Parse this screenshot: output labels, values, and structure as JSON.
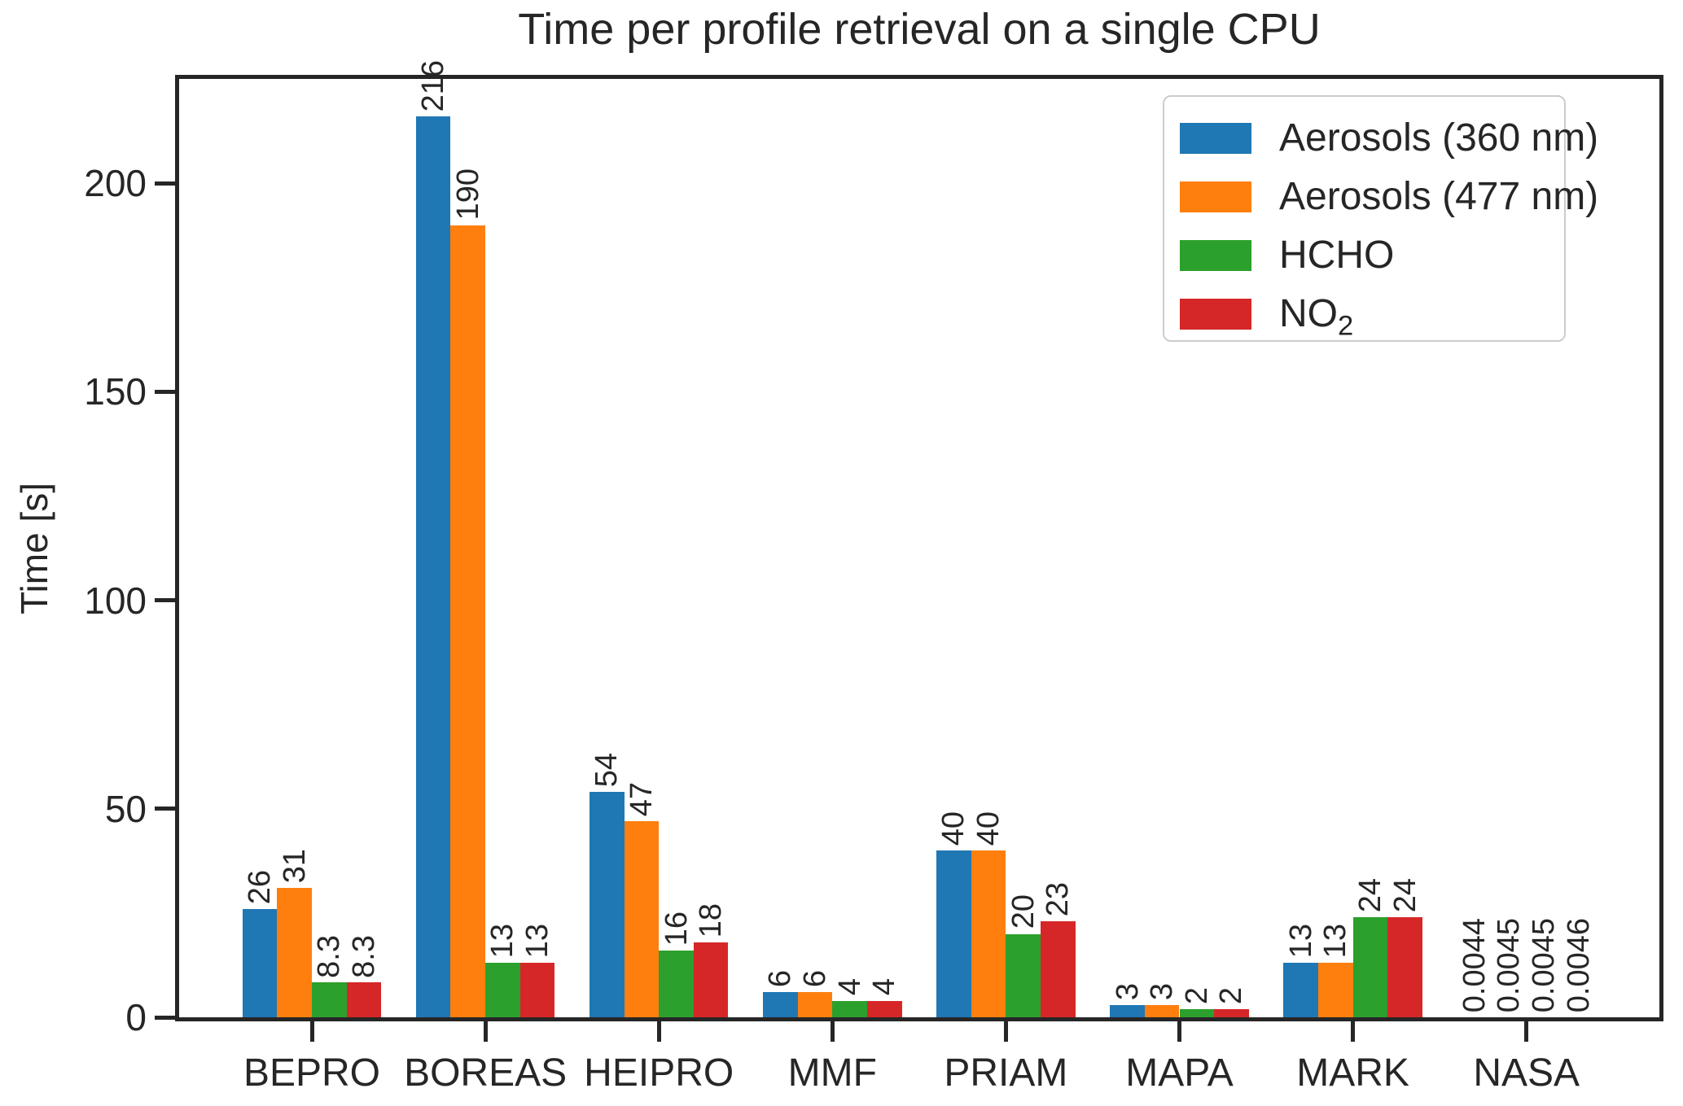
{
  "chart_data": {
    "type": "bar",
    "title": "Time per profile retrieval on a single CPU",
    "ylabel": "Time [s]",
    "xlabel": "",
    "categories": [
      "BEPRO",
      "BOREAS",
      "HEIPRO",
      "MMF",
      "PRIAM",
      "MAPA",
      "MARK",
      "NASA"
    ],
    "series": [
      {
        "name": "Aerosols (360 nm)",
        "color": "#1f77b4",
        "values": [
          26,
          216,
          54,
          6,
          40,
          3,
          13,
          0.0044
        ],
        "labels": [
          "26",
          "216",
          "54",
          "6",
          "40",
          "3",
          "13",
          "0.0044"
        ],
        "legend": {
          "text": "Aerosols (360 nm)",
          "sub": ""
        }
      },
      {
        "name": "Aerosols (477 nm)",
        "color": "#ff7f0e",
        "values": [
          31,
          190,
          47,
          6,
          40,
          3,
          13,
          0.0045
        ],
        "labels": [
          "31",
          "190",
          "47",
          "6",
          "40",
          "3",
          "13",
          "0.0045"
        ],
        "legend": {
          "text": "Aerosols (477 nm)",
          "sub": ""
        }
      },
      {
        "name": "HCHO",
        "color": "#2ca02c",
        "values": [
          8.3,
          13,
          16,
          4,
          20,
          2,
          24,
          0.0045
        ],
        "labels": [
          "8.3",
          "13",
          "16",
          "4",
          "20",
          "2",
          "24",
          "0.0045"
        ],
        "legend": {
          "text": "HCHO",
          "sub": ""
        }
      },
      {
        "name": "NO2",
        "color": "#d62728",
        "values": [
          8.3,
          13,
          18,
          4,
          23,
          2,
          24,
          0.0046
        ],
        "labels": [
          "8.3",
          "13",
          "18",
          "4",
          "23",
          "2",
          "24",
          "0.0046"
        ],
        "legend": {
          "text": "NO",
          "sub": "2"
        }
      }
    ],
    "yticks": [
      0,
      50,
      100,
      150,
      200
    ],
    "ytick_labels": [
      "0",
      "50",
      "100",
      "150",
      "200"
    ],
    "ylim": [
      0,
      227
    ],
    "grid": false,
    "legend_position": "upper right",
    "bar_value_rotation": 90
  },
  "colors": {
    "text": "#262626",
    "spine": "#262626",
    "legend_border": "#cccccc",
    "background": "#ffffff"
  }
}
